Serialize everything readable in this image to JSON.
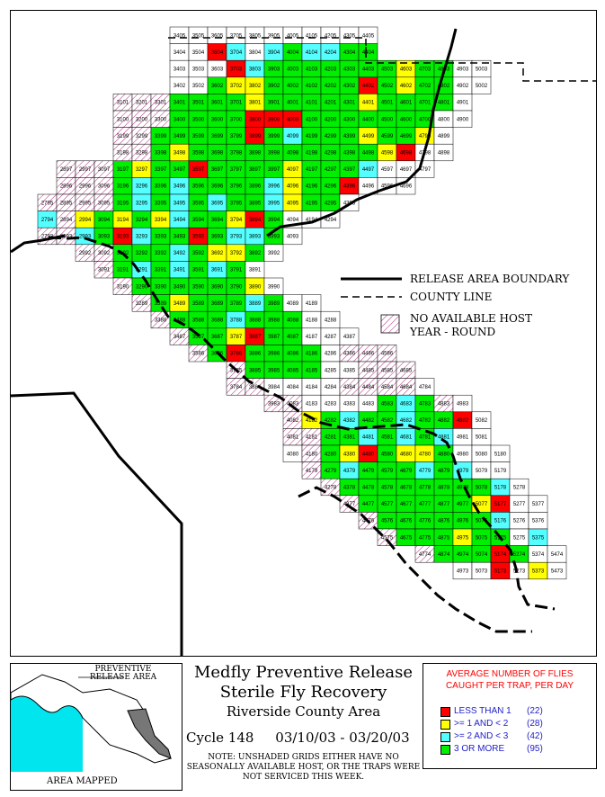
{
  "title": {
    "line1": "Medfly Preventive Release",
    "line2": "Sterile Fly Recovery",
    "line3": "Riverside County Area",
    "cycle_label": "Cycle 148",
    "date_range": "03/10/03 - 03/20/03",
    "note": "NOTE: UNSHADED GRIDS EITHER HAVE NO SEASONALLY AVAILABLE HOST, OR THE TRAPS WERE NOT SERVICED THIS WEEK."
  },
  "inset": {
    "title": "PREVENTIVE RELEASE AREA",
    "footer": "AREA MAPPED"
  },
  "map_legend": {
    "release_boundary": "RELEASE AREA BOUNDARY",
    "county_line": "COUNTY LINE",
    "no_host_line1": "NO AVAILABLE HOST",
    "no_host_line2": "YEAR - ROUND"
  },
  "legend": {
    "title_line1": "AVERAGE NUMBER OF FLIES",
    "title_line2": "CAUGHT PER TRAP, PER DAY",
    "items": [
      {
        "label": "LESS THAN 1",
        "count": "(22)",
        "color": "#ff0000"
      },
      {
        "label": ">= 1 AND < 2",
        "count": "(28)",
        "color": "#ffff00"
      },
      {
        "label": ">= 2 AND < 3",
        "count": "(42)",
        "color": "#55ffff"
      },
      {
        "label": "3 OR MORE",
        "count": "(95)",
        "color": "#00ee00"
      }
    ]
  },
  "colors": {
    "red": "#ff0000",
    "yellow": "#ffff00",
    "cyan": "#55ffff",
    "green": "#00ee00",
    "hatch": "#b03080"
  },
  "grid_rows": [
    {
      "row": 0,
      "cells": [
        "3405",
        "3505",
        "3605",
        "3705",
        "3805",
        "3905",
        "4005",
        "4105",
        "4205",
        "4305",
        "4405"
      ],
      "start": 0
    },
    {
      "row": 1,
      "cells": [
        "3404",
        "3504",
        "3604",
        "3704",
        "3804",
        "3904",
        "4004",
        "4104",
        "4204",
        "4304",
        "4404"
      ],
      "start": 0,
      "colors": {
        "3604": "r",
        "3704": "c",
        "3904": "c",
        "4004": "g",
        "4104": "c",
        "4204": "c",
        "4304": "g",
        "4404": "g"
      }
    },
    {
      "row": 2,
      "cells": [
        "3403",
        "3503",
        "3603",
        "3703",
        "3803",
        "3903",
        "4003",
        "4103",
        "4203",
        "4303",
        "4403",
        "4503",
        "4603",
        "4703",
        "4803",
        "4903",
        "5003"
      ],
      "start": 0,
      "colors": {
        "3703": "r",
        "3803": "c",
        "3903": "g",
        "4003": "g",
        "4103": "g",
        "4203": "g",
        "4303": "g",
        "4403": "g",
        "4503": "g",
        "4603": "y",
        "4703": "g",
        "4803": "g"
      }
    },
    {
      "row": 3,
      "cells": [
        "3402",
        "3502",
        "3602",
        "3702",
        "3802",
        "3902",
        "4002",
        "4102",
        "4202",
        "4302",
        "4402",
        "4502",
        "4602",
        "4702",
        "4802",
        "4902",
        "5002"
      ],
      "start": 0,
      "colors": {
        "3602": "g",
        "3702": "y",
        "3802": "y",
        "3902": "g",
        "4002": "g",
        "4102": "g",
        "4202": "g",
        "4302": "g",
        "4402": "r",
        "4502": "g",
        "4602": "y",
        "4702": "g",
        "4802": "g"
      }
    },
    {
      "row": 4,
      "cells": [
        "3101",
        "3201",
        "3301",
        "3401",
        "3501",
        "3601",
        "3701",
        "3801",
        "3901",
        "4001",
        "4101",
        "4201",
        "4301",
        "4401",
        "4501",
        "4601",
        "4701",
        "4801",
        "4901"
      ],
      "start": -3,
      "colors": {
        "3401": "g",
        "3501": "g",
        "3601": "g",
        "3701": "g",
        "3801": "y",
        "3901": "g",
        "4001": "g",
        "4101": "g",
        "4201": "g",
        "4301": "g",
        "4401": "y",
        "4501": "g",
        "4601": "g",
        "4701": "g",
        "4801": "g"
      }
    },
    {
      "row": 5,
      "cells": [
        "3100",
        "3200",
        "3300",
        "3400",
        "3500",
        "3600",
        "3700",
        "3800",
        "3900",
        "4000",
        "4100",
        "4200",
        "4300",
        "4400",
        "4500",
        "4600",
        "4700",
        "4800",
        "4900"
      ],
      "start": -3,
      "colors": {
        "3400": "g",
        "3500": "g",
        "3600": "g",
        "3700": "g",
        "3800": "r",
        "3900": "r",
        "4000": "r",
        "4100": "g",
        "4200": "g",
        "4300": "g",
        "4400": "g",
        "4500": "g",
        "4600": "g",
        "4700": "g"
      }
    },
    {
      "row": 6,
      "cells": [
        "3199",
        "3299",
        "3399",
        "3499",
        "3599",
        "3699",
        "3799",
        "3899",
        "3999",
        "4099",
        "4199",
        "4299",
        "4399",
        "4499",
        "4599",
        "4699",
        "4799",
        "4899"
      ],
      "start": -3,
      "colors": {
        "3399": "g",
        "3499": "g",
        "3599": "g",
        "3699": "g",
        "3799": "g",
        "3899": "r",
        "3999": "g",
        "4099": "c",
        "4199": "g",
        "4299": "g",
        "4399": "g",
        "4499": "y",
        "4599": "g",
        "4699": "g",
        "4799": "y"
      }
    },
    {
      "row": 7,
      "cells": [
        "3198",
        "3298",
        "3398",
        "3498",
        "3598",
        "3698",
        "3798",
        "3898",
        "3998",
        "4098",
        "4198",
        "4298",
        "4398",
        "4498",
        "4598",
        "4698",
        "4798",
        "4898"
      ],
      "start": -3,
      "colors": {
        "3398": "g",
        "3498": "y",
        "3598": "g",
        "3698": "g",
        "3798": "g",
        "3898": "g",
        "3998": "g",
        "4098": "g",
        "4198": "g",
        "4298": "g",
        "4398": "g",
        "4498": "g",
        "4598": "y",
        "4698": "r"
      }
    },
    {
      "row": 8,
      "cells": [
        "2897",
        "2997",
        "3097",
        "3197",
        "3297",
        "3397",
        "3497",
        "3597",
        "3697",
        "3797",
        "3897",
        "3997",
        "4097",
        "4197",
        "4297",
        "4397",
        "4497",
        "4597",
        "4697",
        "4797"
      ],
      "start": -6,
      "colors": {
        "3197": "g",
        "3297": "y",
        "3397": "g",
        "3497": "g",
        "3597": "r",
        "3697": "g",
        "3797": "g",
        "3897": "g",
        "3997": "g",
        "4097": "y",
        "4197": "g",
        "4297": "g",
        "4397": "g",
        "4497": "c"
      }
    },
    {
      "row": 9,
      "cells": [
        "2896",
        "2996",
        "3096",
        "3196",
        "3296",
        "3396",
        "3496",
        "3596",
        "3696",
        "3796",
        "3896",
        "3996",
        "4096",
        "4196",
        "4296",
        "4396",
        "4496",
        "4596",
        "4696"
      ],
      "start": -6,
      "colors": {
        "3196": "g",
        "3296": "c",
        "3396": "g",
        "3496": "c",
        "3596": "g",
        "3696": "g",
        "3796": "g",
        "3896": "g",
        "3996": "c",
        "4096": "y",
        "4196": "g",
        "4296": "g",
        "4396": "r"
      }
    },
    {
      "row": 10,
      "cells": [
        "2795",
        "2895",
        "2995",
        "3095",
        "3195",
        "3295",
        "3395",
        "3495",
        "3595",
        "3695",
        "3795",
        "3895",
        "3995",
        "4095",
        "4195",
        "4295",
        "4395"
      ],
      "start": -7,
      "colors": {
        "3195": "g",
        "3295": "c",
        "3395": "g",
        "3495": "c",
        "3595": "g",
        "3695": "c",
        "3795": "g",
        "3895": "g",
        "3995": "c",
        "4095": "y",
        "4195": "g",
        "4295": "g"
      }
    },
    {
      "row": 11,
      "cells": [
        "2794",
        "2894",
        "2994",
        "3094",
        "3194",
        "3294",
        "3394",
        "3494",
        "3594",
        "3694",
        "3794",
        "3894",
        "3994",
        "4094",
        "4194",
        "4294"
      ],
      "start": -7,
      "colors": {
        "2794": "c",
        "2994": "y",
        "3094": "g",
        "3194": "y",
        "3294": "g",
        "3394": "y",
        "3494": "c",
        "3594": "g",
        "3694": "g",
        "3794": "y",
        "3894": "r",
        "3994": "g"
      }
    },
    {
      "row": 12,
      "cells": [
        "2793",
        "2893",
        "2993",
        "3093",
        "3193",
        "3293",
        "3393",
        "3493",
        "3593",
        "3693",
        "3793",
        "3893",
        "3993",
        "4093"
      ],
      "start": -7,
      "colors": {
        "2993": "c",
        "3093": "g",
        "3193": "r",
        "3293": "c",
        "3393": "g",
        "3493": "g",
        "3593": "r",
        "3693": "g",
        "3793": "c",
        "3893": "c",
        "3993": "g"
      }
    },
    {
      "row": 13,
      "cells": [
        "2992",
        "3092",
        "3192",
        "3292",
        "3392",
        "3492",
        "3592",
        "3692",
        "3792",
        "3892",
        "3992"
      ],
      "start": -5,
      "colors": {
        "3192": "g",
        "3292": "g",
        "3392": "g",
        "3492": "c",
        "3592": "g",
        "3692": "y",
        "3792": "y",
        "3892": "g"
      }
    },
    {
      "row": 14,
      "cells": [
        "3091",
        "3191",
        "3291",
        "3391",
        "3491",
        "3591",
        "3691",
        "3791",
        "3891"
      ],
      "start": -4,
      "colors": {
        "3191": "g",
        "3291": "c",
        "3391": "g",
        "3491": "c",
        "3591": "g",
        "3691": "c",
        "3791": "g"
      }
    },
    {
      "row": 15,
      "cells": [
        "3190",
        "3290",
        "3390",
        "3490",
        "3590",
        "3690",
        "3790",
        "3890",
        "3990"
      ],
      "start": -3,
      "colors": {
        "3290": "g",
        "3390": "g",
        "3490": "g",
        "3590": "g",
        "3690": "g",
        "3790": "g",
        "3890": "y"
      }
    },
    {
      "row": 16,
      "cells": [
        "3289",
        "3389",
        "3489",
        "3589",
        "3689",
        "3789",
        "3889",
        "3989",
        "4089",
        "4189"
      ],
      "start": -2,
      "colors": {
        "3389": "g",
        "3489": "y",
        "3589": "g",
        "3689": "g",
        "3789": "g",
        "3889": "c",
        "3989": "g"
      }
    },
    {
      "row": 17,
      "cells": [
        "3388",
        "3488",
        "3588",
        "3688",
        "3788",
        "3888",
        "3988",
        "4088",
        "4188",
        "4288"
      ],
      "start": -1,
      "colors": {
        "3488": "g",
        "3588": "g",
        "3688": "g",
        "3788": "c",
        "3888": "g",
        "3988": "g",
        "4088": "g"
      }
    },
    {
      "row": 18,
      "cells": [
        "3487",
        "3587",
        "3687",
        "3787",
        "3887",
        "3987",
        "4087",
        "4187",
        "4287",
        "4387"
      ],
      "start": 0,
      "colors": {
        "3587": "g",
        "3687": "g",
        "3787": "y",
        "3887": "r",
        "3987": "g",
        "4087": "g"
      }
    },
    {
      "row": 19,
      "cells": [
        "3586",
        "3686",
        "3786",
        "3886",
        "3986",
        "4086",
        "4186",
        "4286",
        "4386",
        "4486",
        "4586"
      ],
      "start": 1,
      "colors": {
        "3686": "g",
        "3786": "r",
        "3886": "g",
        "3986": "g",
        "4086": "g",
        "4186": "g"
      }
    },
    {
      "row": 20,
      "cells": [
        "3785",
        "3885",
        "3985",
        "4085",
        "4185",
        "4285",
        "4385",
        "4485",
        "4585",
        "4685"
      ],
      "start": 3,
      "colors": {
        "3885": "g",
        "3985": "g",
        "4085": "g",
        "4185": "g"
      }
    },
    {
      "row": 21,
      "cells": [
        "3784",
        "3884",
        "3984",
        "4084",
        "4184",
        "4284",
        "4384",
        "4484",
        "4584",
        "4684",
        "4784"
      ],
      "start": 3
    },
    {
      "row": 22,
      "cells": [
        "3983",
        "4083",
        "4183",
        "4283",
        "4383",
        "4483",
        "4583",
        "4683",
        "4783",
        "4883",
        "4983"
      ],
      "start": 5,
      "colors": {
        "4583": "g",
        "4683": "c",
        "4783": "g"
      }
    },
    {
      "row": 23,
      "cells": [
        "4082",
        "4182",
        "4282",
        "4382",
        "4482",
        "4582",
        "4682",
        "4782",
        "4882",
        "4982",
        "5082"
      ],
      "start": 6,
      "colors": {
        "4182": "y",
        "4282": "g",
        "4382": "c",
        "4482": "g",
        "4582": "g",
        "4682": "c",
        "4782": "g",
        "4882": "g",
        "4982": "r"
      }
    },
    {
      "row": 24,
      "cells": [
        "4081",
        "4181",
        "4281",
        "4381",
        "4481",
        "4581",
        "4681",
        "4781",
        "4881",
        "4981",
        "5081"
      ],
      "start": 6,
      "colors": {
        "4281": "g",
        "4381": "g",
        "4481": "c",
        "4581": "g",
        "4681": "c",
        "4781": "g",
        "4881": "c"
      }
    },
    {
      "row": 25,
      "cells": [
        "4080",
        "4180",
        "4280",
        "4380",
        "4480",
        "4580",
        "4680",
        "4780",
        "4880",
        "4980",
        "5080",
        "5180"
      ],
      "start": 6,
      "colors": {
        "4280": "g",
        "4380": "y",
        "4480": "r",
        "4580": "g",
        "4680": "y",
        "4780": "y",
        "4880": "g"
      }
    },
    {
      "row": 26,
      "cells": [
        "4179",
        "4279",
        "4379",
        "4479",
        "4579",
        "4679",
        "4779",
        "4879",
        "4979",
        "5079",
        "5179"
      ],
      "start": 7,
      "colors": {
        "4279": "g",
        "4379": "c",
        "4479": "g",
        "4579": "g",
        "4679": "g",
        "4779": "c",
        "4879": "g",
        "4979": "c"
      }
    },
    {
      "row": 27,
      "cells": [
        "4278",
        "4378",
        "4478",
        "4578",
        "4678",
        "4778",
        "4878",
        "4978",
        "5078",
        "5178",
        "5278"
      ],
      "start": 8,
      "colors": {
        "4378": "g",
        "4478": "g",
        "4578": "g",
        "4678": "g",
        "4778": "g",
        "4878": "g",
        "4978": "g",
        "5078": "g",
        "5178": "c"
      }
    },
    {
      "row": 28,
      "cells": [
        "4377",
        "4477",
        "4577",
        "4677",
        "4777",
        "4877",
        "4977",
        "5077",
        "5177",
        "5277",
        "5377"
      ],
      "start": 9,
      "colors": {
        "4477": "g",
        "4577": "g",
        "4677": "g",
        "4777": "g",
        "4877": "g",
        "4977": "g",
        "5077": "y",
        "5177": "r"
      }
    },
    {
      "row": 29,
      "cells": [
        "4476",
        "4576",
        "4676",
        "4776",
        "4876",
        "4976",
        "5076",
        "5176",
        "5276",
        "5376"
      ],
      "start": 10,
      "colors": {
        "4576": "g",
        "4676": "g",
        "4776": "g",
        "4876": "g",
        "4976": "g",
        "5076": "g",
        "5176": "c"
      }
    },
    {
      "row": 30,
      "cells": [
        "4575",
        "4675",
        "4775",
        "4875",
        "4975",
        "5075",
        "5175",
        "5275",
        "5375"
      ],
      "start": 11,
      "colors": {
        "4675": "g",
        "4775": "g",
        "4875": "g",
        "4975": "y",
        "5075": "g",
        "5175": "g",
        "5375": "c"
      }
    },
    {
      "row": 31,
      "cells": [
        "4774",
        "4874",
        "4974",
        "5074",
        "5174",
        "5274",
        "5374",
        "5474"
      ],
      "start": 13,
      "colors": {
        "4874": "g",
        "4974": "g",
        "5074": "g",
        "5174": "r",
        "5274": "g"
      }
    },
    {
      "row": 32,
      "cells": [
        "4973",
        "5073",
        "5173",
        "5273",
        "5373",
        "5473"
      ],
      "start": 15,
      "colors": {
        "5173": "r",
        "5373": "y"
      }
    }
  ]
}
